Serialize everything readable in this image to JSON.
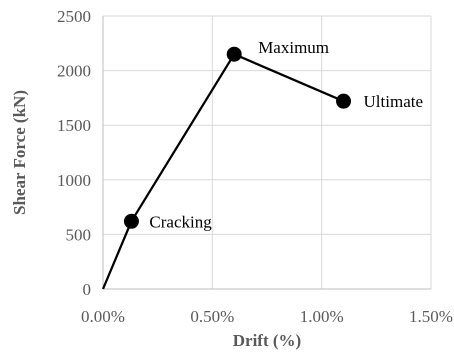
{
  "chart_data": {
    "type": "line",
    "title": "",
    "xlabel": "Drift (%)",
    "ylabel": "Shear Force (kN)",
    "xlim": [
      0,
      1.5
    ],
    "ylim": [
      0,
      2500
    ],
    "grid": true,
    "x_ticks": [
      "0.00%",
      "0.50%",
      "1.00%",
      "1.50%"
    ],
    "y_ticks": [
      "0",
      "500",
      "1000",
      "1500",
      "2000",
      "2500"
    ],
    "series": [
      {
        "color": "#000000",
        "x": [
          0,
          0.13,
          0.6,
          1.1
        ],
        "y": [
          0,
          620,
          2150,
          1720
        ]
      }
    ],
    "annotations": [
      "",
      "Cracking",
      "Maximum",
      "Ultimate"
    ]
  }
}
